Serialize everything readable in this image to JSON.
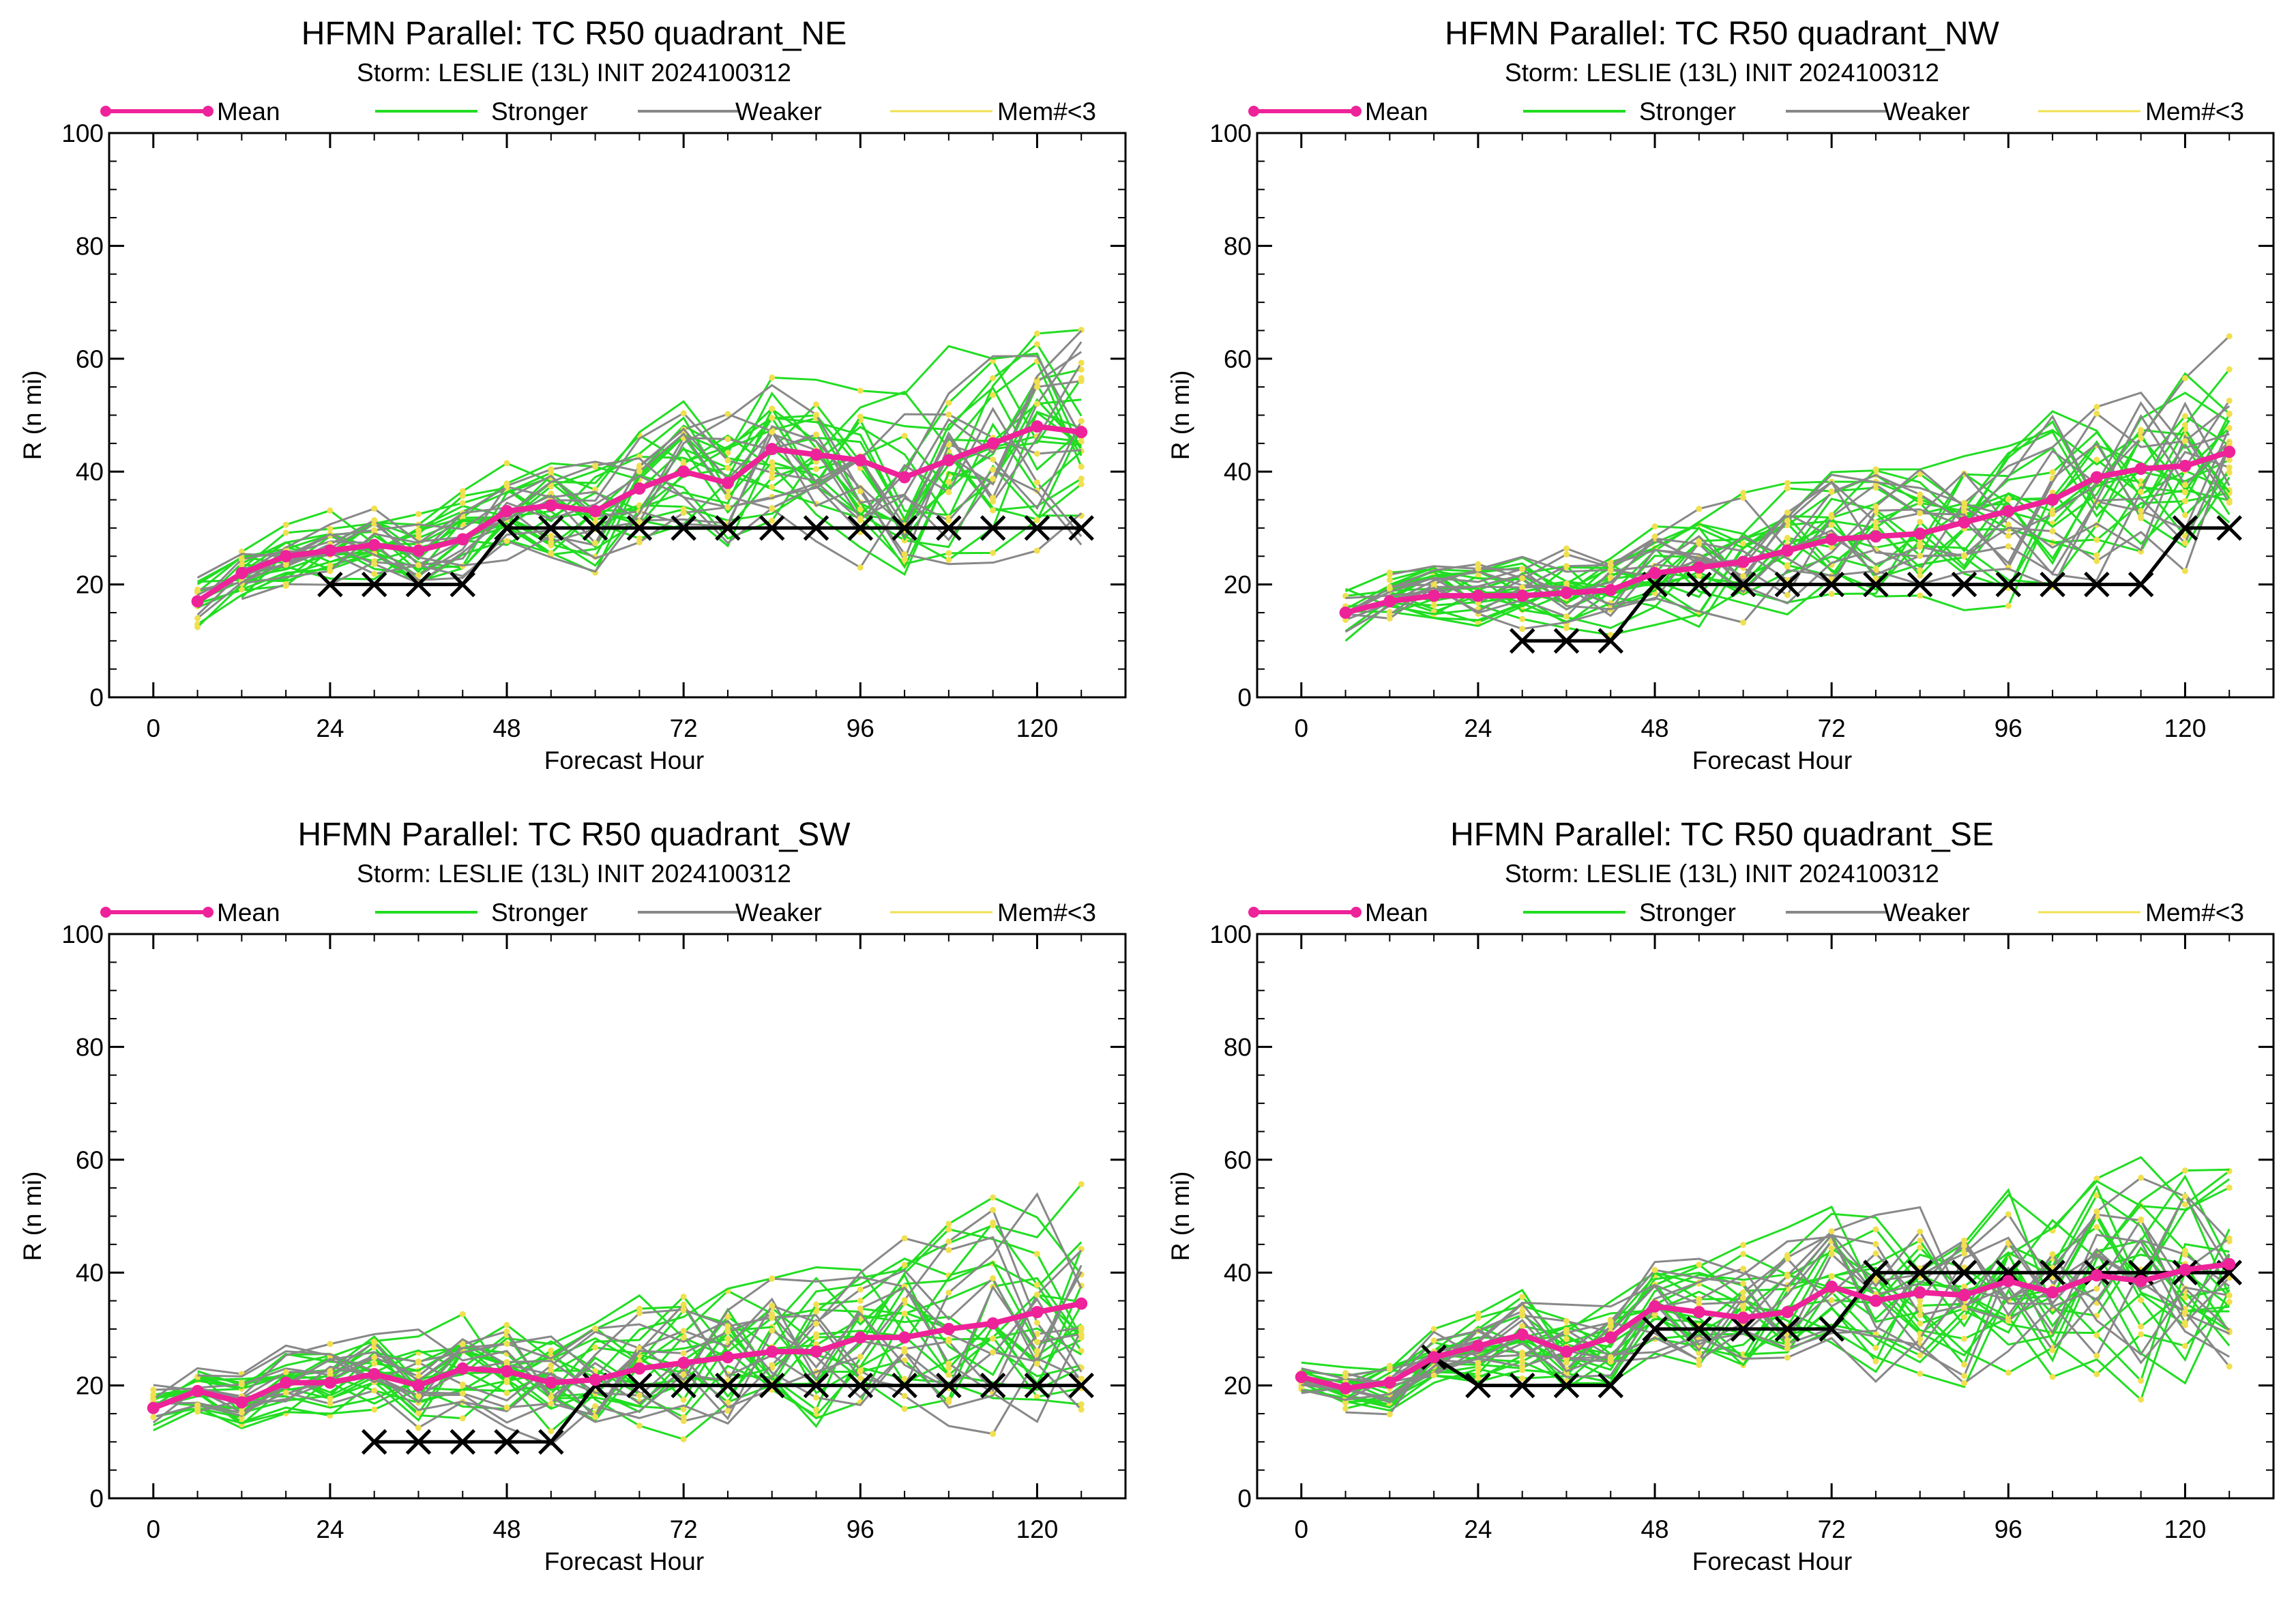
{
  "colors": {
    "mean": "#ee2299",
    "stronger": "#22dd22",
    "weaker": "#888888",
    "mem": "#f0e050",
    "obs": "#000000"
  },
  "legend": {
    "mean": "Mean",
    "stronger": "Stronger",
    "weaker": "Weaker",
    "mem": "Mem#<3"
  },
  "panels": [
    {
      "title": "HFMN Parallel: TC  R50 quadrant_NE",
      "subtitle": "Storm: LESLIE (13L) INIT 2024100312",
      "chart_data": {
        "type": "line",
        "xlabel": "Forecast Hour",
        "ylabel": "R (n mi)",
        "xlim": [
          -6,
          132
        ],
        "ylim": [
          0,
          100
        ],
        "xticks": [
          0,
          24,
          48,
          72,
          96,
          120
        ],
        "yticks": [
          0,
          20,
          40,
          60,
          80,
          100
        ],
        "series": [
          {
            "name": "Mean",
            "x": [
              6,
              12,
              18,
              24,
              30,
              36,
              42,
              48,
              54,
              60,
              66,
              72,
              78,
              84,
              90,
              96,
              102,
              108,
              114,
              120,
              126
            ],
            "y": [
              17,
              22,
              25,
              26,
              27,
              26,
              28,
              33,
              34,
              33,
              37,
              40,
              38,
              44,
              43,
              42,
              39,
              42,
              45,
              48,
              47
            ]
          },
          {
            "name": "Best track",
            "x": [
              24,
              30,
              36,
              42,
              48,
              54,
              60,
              66,
              72,
              78,
              84,
              90,
              96,
              102,
              108,
              114,
              120,
              126
            ],
            "y": [
              20,
              20,
              20,
              20,
              30,
              30,
              30,
              30,
              30,
              30,
              30,
              30,
              30,
              30,
              30,
              30,
              30,
              30
            ]
          }
        ]
      }
    },
    {
      "title": "HFMN Parallel: TC  R50 quadrant_NW",
      "subtitle": "Storm: LESLIE (13L) INIT 2024100312",
      "chart_data": {
        "type": "line",
        "xlabel": "Forecast Hour",
        "ylabel": "R (n mi)",
        "xlim": [
          -6,
          132
        ],
        "ylim": [
          0,
          100
        ],
        "xticks": [
          0,
          24,
          48,
          72,
          96,
          120
        ],
        "yticks": [
          0,
          20,
          40,
          60,
          80,
          100
        ],
        "series": [
          {
            "name": "Mean",
            "x": [
              6,
              12,
              18,
              24,
              30,
              36,
              42,
              48,
              54,
              60,
              66,
              72,
              78,
              84,
              90,
              96,
              102,
              108,
              114,
              120,
              126
            ],
            "y": [
              15,
              17,
              18,
              18,
              18,
              18.5,
              19,
              22,
              23,
              24,
              26,
              28,
              28.5,
              29,
              31,
              33,
              35,
              39,
              40.5,
              41,
              43.5
            ]
          },
          {
            "name": "Best track",
            "x": [
              30,
              36,
              42,
              48,
              54,
              60,
              66,
              72,
              78,
              84,
              90,
              96,
              102,
              108,
              114,
              120,
              126
            ],
            "y": [
              10,
              10,
              10,
              20,
              20,
              20,
              20,
              20,
              20,
              20,
              20,
              20,
              20,
              20,
              20,
              30,
              30
            ]
          }
        ]
      }
    },
    {
      "title": "HFMN Parallel: TC  R50 quadrant_SW",
      "subtitle": "Storm: LESLIE (13L) INIT 2024100312",
      "chart_data": {
        "type": "line",
        "xlabel": "Forecast Hour",
        "ylabel": "R (n mi)",
        "xlim": [
          -6,
          132
        ],
        "ylim": [
          0,
          100
        ],
        "xticks": [
          0,
          24,
          48,
          72,
          96,
          120
        ],
        "yticks": [
          0,
          20,
          40,
          60,
          80,
          100
        ],
        "series": [
          {
            "name": "Mean",
            "x": [
              0,
              6,
              12,
              18,
              24,
              30,
              36,
              42,
              48,
              54,
              60,
              66,
              72,
              78,
              84,
              90,
              96,
              102,
              108,
              114,
              120,
              126
            ],
            "y": [
              16,
              19,
              17,
              20.5,
              20.5,
              22,
              20,
              23,
              22.5,
              20.5,
              21,
              23,
              24,
              25,
              26,
              26,
              28.5,
              28.5,
              30,
              31,
              33,
              34.5
            ]
          },
          {
            "name": "Best track",
            "x": [
              30,
              36,
              42,
              48,
              54,
              60,
              66,
              72,
              78,
              84,
              90,
              96,
              102,
              108,
              114,
              120,
              126
            ],
            "y": [
              10,
              10,
              10,
              10,
              10,
              20,
              20,
              20,
              20,
              20,
              20,
              20,
              20,
              20,
              20,
              20,
              20
            ]
          }
        ]
      }
    },
    {
      "title": "HFMN Parallel: TC  R50 quadrant_SE",
      "subtitle": "Storm: LESLIE (13L) INIT 2024100312",
      "chart_data": {
        "type": "line",
        "xlabel": "Forecast Hour",
        "ylabel": "R (n mi)",
        "xlim": [
          -6,
          132
        ],
        "ylim": [
          0,
          100
        ],
        "xticks": [
          0,
          24,
          48,
          72,
          96,
          120
        ],
        "yticks": [
          0,
          20,
          40,
          60,
          80,
          100
        ],
        "series": [
          {
            "name": "Mean",
            "x": [
              0,
              6,
              12,
              18,
              24,
              30,
              36,
              42,
              48,
              54,
              60,
              66,
              72,
              78,
              84,
              90,
              96,
              102,
              108,
              114,
              120,
              126
            ],
            "y": [
              21.5,
              19.5,
              20.5,
              25,
              27,
              29,
              26,
              28.5,
              34,
              33,
              32,
              33,
              37.5,
              35,
              36.5,
              36,
              38.5,
              36.5,
              39.5,
              38.5,
              40.5,
              41.5
            ]
          },
          {
            "name": "Best track",
            "x": [
              18,
              24,
              30,
              36,
              42,
              48,
              54,
              60,
              66,
              72,
              78,
              84,
              90,
              96,
              102,
              108,
              114,
              120,
              126
            ],
            "y": [
              25,
              20,
              20,
              20,
              20,
              30,
              30,
              30,
              30,
              30,
              40,
              40,
              40,
              40,
              40,
              40,
              40,
              40,
              40
            ]
          }
        ]
      }
    }
  ]
}
